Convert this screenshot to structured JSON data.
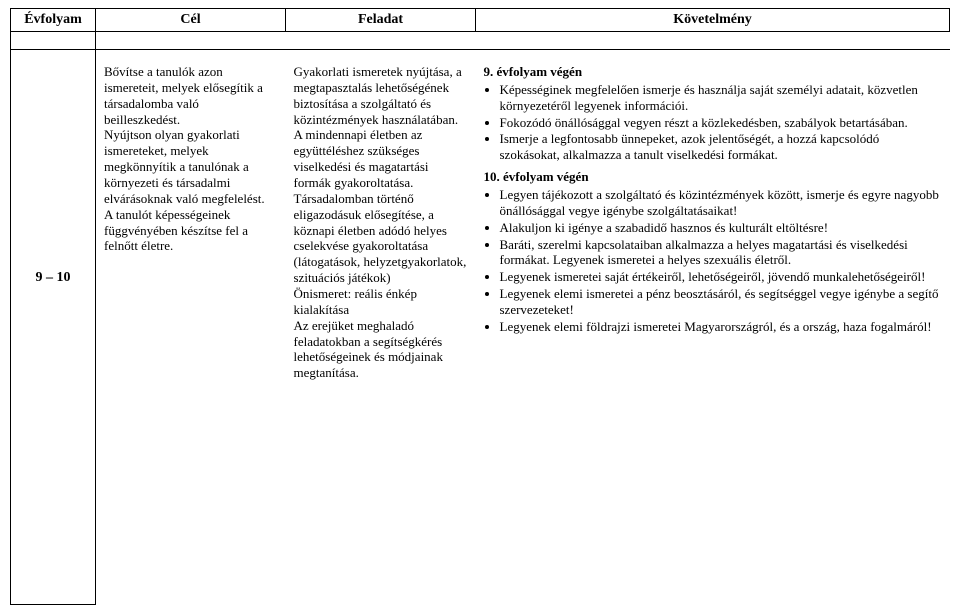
{
  "headers": {
    "c1": "Évfolyam",
    "c2": "Cél",
    "c3": "Feladat",
    "c4": "Követelmény"
  },
  "grade": "9 – 10",
  "cel": {
    "p1": "Bővítse a tanulók azon ismereteit, melyek elősegítik a társadalomba való beilleszkedést.",
    "p2": "Nyújtson olyan gyakorlati ismereteket, melyek megkönnyítik a tanulónak a környezeti és társadalmi elvárásoknak való megfelelést.",
    "p3": "A tanulót képességeinek függvényében készítse fel a felnőtt életre."
  },
  "feladat": {
    "p1": "Gyakorlati ismeretek nyújtása, a megtapasztalás lehetőségének biztosítása a szolgáltató és közintézmények használatában.",
    "p2": "A mindennapi életben az együttéléshez szükséges viselkedési és magatartási formák gyakoroltatása.",
    "p3": "Társadalomban történő eligazodásuk elősegítése, a köznapi életben adódó helyes cselekvése gyakoroltatása (látogatások, helyzetgyakorlatok, szituációs játékok)",
    "p4": "Önismeret: reális énkép kialakítása",
    "p5": "Az erejüket meghaladó feladatokban a segítségkérés lehetőségeinek és módjainak megtanítása."
  },
  "kov": {
    "h1": "9. évfolyam végén",
    "b1": [
      "Képességinek megfelelően ismerje és használja saját személyi adatait, közvetlen környezetéről legyenek információi.",
      "Fokozódó önállósággal vegyen részt a közlekedésben, szabályok betartásában.",
      "Ismerje a legfontosabb ünnepeket, azok jelentőségét, a hozzá kapcsolódó szokásokat, alkalmazza a tanult viselkedési formákat."
    ],
    "h2": "10. évfolyam végén",
    "b2": [
      "Legyen tájékozott a szolgáltató és közintézmények között, ismerje és egyre nagyobb önállósággal vegye igénybe szolgáltatásaikat!",
      "Alakuljon ki igénye a szabadidő hasznos és kulturált eltöltésre!",
      "Baráti, szerelmi kapcsolataiban alkalmazza a helyes magatartási és viselkedési formákat. Legyenek ismeretei a helyes szexuális életről.",
      "Legyenek ismeretei saját értékeiről, lehetőségeiről, jövendő munkalehetőségeiről!",
      "Legyenek elemi ismeretei a pénz beosztásáról, és segítséggel vegye igénybe a segítő szervezeteket!",
      "Legyenek elemi földrajzi ismeretei Magyarországról, és a ország, haza fogalmáról!"
    ]
  }
}
